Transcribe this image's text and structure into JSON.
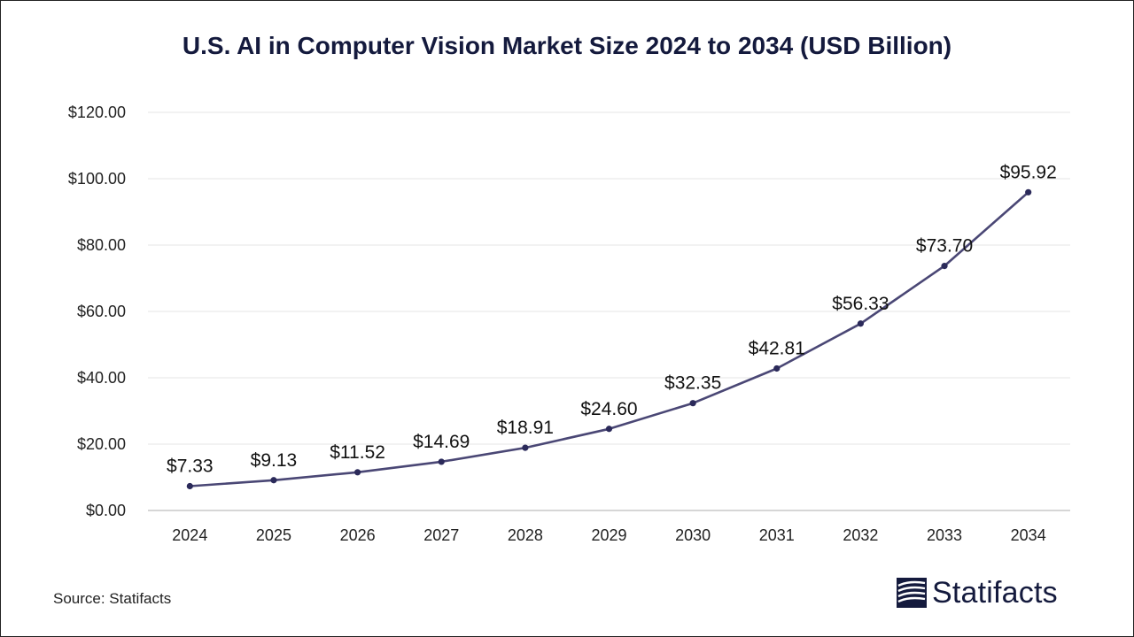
{
  "chart_data": {
    "type": "line",
    "title": "U.S. AI in Computer Vision Market Size 2024 to 2034 (USD Billion)",
    "xlabel": "",
    "ylabel": "",
    "categories": [
      "2024",
      "2025",
      "2026",
      "2027",
      "2028",
      "2029",
      "2030",
      "2031",
      "2032",
      "2033",
      "2034"
    ],
    "values": [
      7.33,
      9.13,
      11.52,
      14.69,
      18.91,
      24.6,
      32.35,
      42.81,
      56.33,
      73.7,
      95.92
    ],
    "data_labels": [
      "$7.33",
      "$9.13",
      "$11.52",
      "$14.69",
      "$18.91",
      "$24.60",
      "$32.35",
      "$42.81",
      "$56.33",
      "$73.70",
      "$95.92"
    ],
    "ylim": [
      0,
      120
    ],
    "yticks": [
      0,
      20,
      40,
      60,
      80,
      100,
      120
    ],
    "ytick_labels": [
      "$0.00",
      "$20.00",
      "$40.00",
      "$60.00",
      "$80.00",
      "$100.00",
      "$120.00"
    ],
    "grid": true,
    "legend": "none",
    "line_color": "#4a4775",
    "marker_color": "#2b2a5a"
  },
  "footer": {
    "source": "Source: Statifacts",
    "brand": "Statifacts",
    "brand_color": "#141a3d"
  }
}
